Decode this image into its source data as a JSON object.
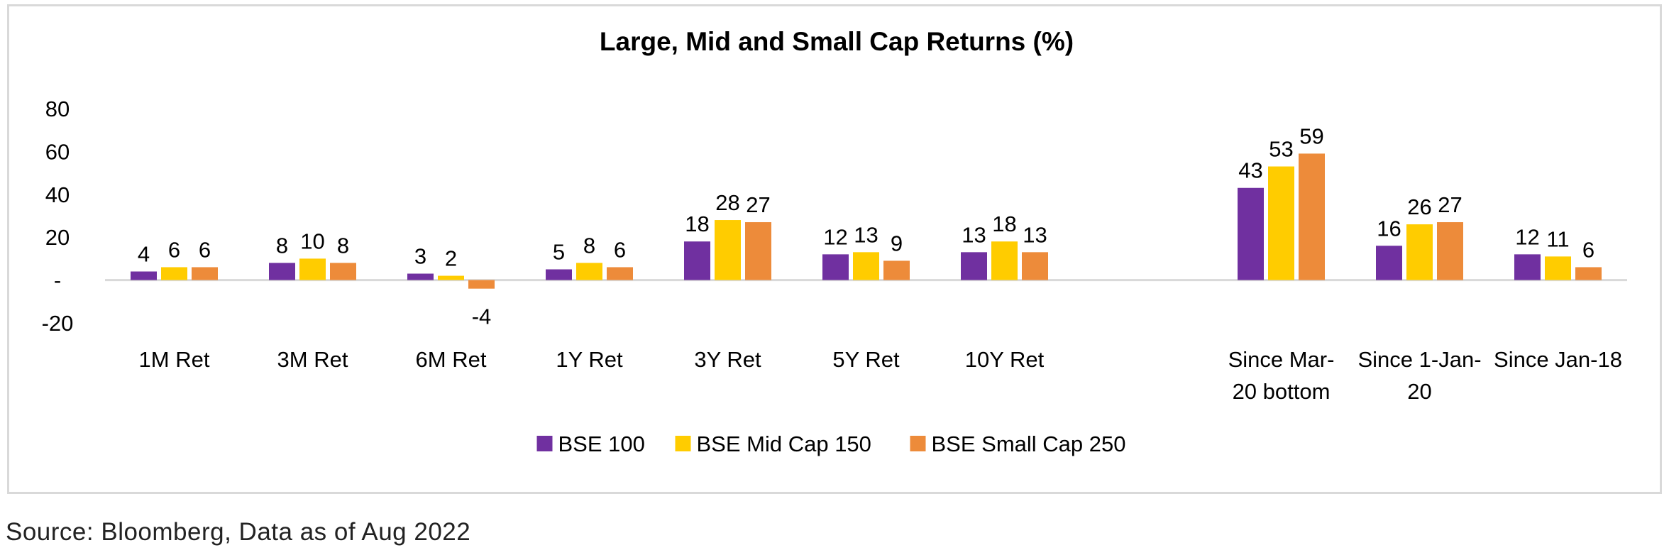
{
  "chart_data": {
    "type": "bar",
    "title": "Large, Mid and Small Cap Returns (%)",
    "xlabel": "",
    "ylabel": "",
    "ylim": [
      -20,
      80
    ],
    "yticks": [
      {
        "value": 80,
        "label": "80"
      },
      {
        "value": 60,
        "label": "60"
      },
      {
        "value": 40,
        "label": "40"
      },
      {
        "value": 20,
        "label": "20"
      },
      {
        "value": 0,
        "label": "-"
      },
      {
        "value": -20,
        "label": "-20"
      }
    ],
    "categories": [
      [
        "1M Ret"
      ],
      [
        "3M Ret"
      ],
      [
        "6M Ret"
      ],
      [
        "1Y Ret"
      ],
      [
        "3Y Ret"
      ],
      [
        "5Y Ret"
      ],
      [
        "10Y Ret"
      ],
      [
        ""
      ],
      [
        "Since Mar-",
        "20 bottom"
      ],
      [
        "Since 1-Jan-",
        "20"
      ],
      [
        "Since Jan-18"
      ]
    ],
    "series": [
      {
        "name": "BSE 100",
        "color": "#7030A0",
        "values": [
          4,
          8,
          3,
          5,
          18,
          12,
          13,
          null,
          43,
          16,
          12
        ]
      },
      {
        "name": "BSE Mid Cap 150",
        "color": "#FFCC00",
        "values": [
          6,
          10,
          2,
          8,
          28,
          13,
          18,
          null,
          53,
          26,
          11
        ]
      },
      {
        "name": "BSE Small Cap 250",
        "color": "#ED8B3A",
        "values": [
          6,
          8,
          -4,
          6,
          27,
          9,
          13,
          null,
          59,
          27,
          6
        ]
      }
    ],
    "grid": false,
    "legend_position": "bottom"
  },
  "source_note": "Source: Bloomberg, Data as of Aug 2022"
}
